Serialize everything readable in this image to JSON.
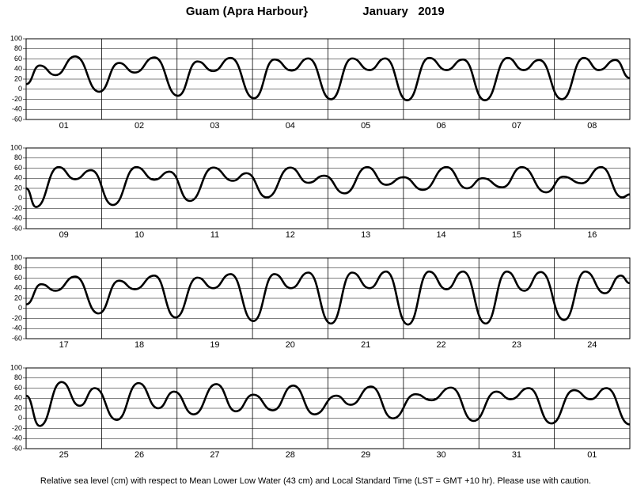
{
  "title": "Guam (Apra Harbour}",
  "date": "January   2019",
  "note": "Relative sea level (cm) with respect to Mean Lower Low Water (43 cm) and Local Standard Time (LST = GMT +10 hr). Please use with caution.",
  "chart_data": [
    {
      "type": "line",
      "categories": [
        "01",
        "02",
        "03",
        "04",
        "05",
        "06",
        "07",
        "08"
      ],
      "xlim": [
        0,
        8
      ],
      "ylim": [
        -60,
        100
      ],
      "yticks": [
        -60,
        -40,
        -20,
        0,
        20,
        40,
        60,
        80,
        100
      ],
      "grid": true,
      "color": "#000000",
      "x": [
        0,
        0.18,
        0.39,
        0.65,
        0.97,
        1.23,
        1.44,
        1.7,
        2.01,
        2.27,
        2.48,
        2.71,
        3.02,
        3.29,
        3.52,
        3.74,
        4.04,
        4.32,
        4.55,
        4.76,
        5.05,
        5.34,
        5.57,
        5.79,
        6.08,
        6.38,
        6.59,
        6.8,
        7.1,
        7.39,
        7.59,
        7.81,
        8
      ],
      "values": [
        10,
        47,
        28,
        65,
        -5,
        52,
        33,
        63,
        -13,
        55,
        36,
        62,
        -18,
        59,
        37,
        61,
        -20,
        61,
        38,
        61,
        -22,
        62,
        38,
        59,
        -22,
        62,
        38,
        58,
        -20,
        62,
        38,
        58,
        22
      ]
    },
    {
      "type": "line",
      "categories": [
        "09",
        "10",
        "11",
        "12",
        "13",
        "14",
        "15",
        "16"
      ],
      "xlim": [
        0,
        8
      ],
      "ylim": [
        -60,
        100
      ],
      "yticks": [
        -60,
        -40,
        -20,
        0,
        20,
        40,
        60,
        80,
        100
      ],
      "grid": true,
      "color": "#000000",
      "x": [
        0,
        0.13,
        0.43,
        0.65,
        0.86,
        1.15,
        1.46,
        1.7,
        1.9,
        2.17,
        2.48,
        2.74,
        2.92,
        3.19,
        3.5,
        3.74,
        3.95,
        4.22,
        4.52,
        4.77,
        5.0,
        5.26,
        5.57,
        5.84,
        6.05,
        6.31,
        6.57,
        6.89,
        7.12,
        7.36,
        7.62,
        7.9,
        8
      ],
      "values": [
        20,
        -17,
        62,
        38,
        56,
        -13,
        62,
        37,
        53,
        -5,
        61,
        35,
        50,
        2,
        61,
        31,
        45,
        10,
        62,
        27,
        42,
        17,
        62,
        20,
        40,
        22,
        62,
        12,
        43,
        30,
        62,
        2,
        8
      ]
    },
    {
      "type": "line",
      "categories": [
        "17",
        "18",
        "19",
        "20",
        "21",
        "22",
        "23",
        "24"
      ],
      "xlim": [
        0,
        8
      ],
      "ylim": [
        -60,
        100
      ],
      "yticks": [
        -60,
        -40,
        -20,
        0,
        20,
        40,
        60,
        80,
        100
      ],
      "grid": true,
      "color": "#000000",
      "x": [
        0,
        0.2,
        0.39,
        0.65,
        0.96,
        1.23,
        1.44,
        1.7,
        1.98,
        2.27,
        2.48,
        2.71,
        3.01,
        3.29,
        3.51,
        3.74,
        4.04,
        4.32,
        4.55,
        4.77,
        5.06,
        5.34,
        5.57,
        5.79,
        6.09,
        6.37,
        6.6,
        6.82,
        7.13,
        7.41,
        7.67,
        7.88,
        8
      ],
      "values": [
        8,
        48,
        35,
        63,
        -10,
        55,
        38,
        65,
        -18,
        61,
        40,
        68,
        -25,
        68,
        40,
        71,
        -30,
        71,
        40,
        73,
        -32,
        73,
        38,
        73,
        -30,
        73,
        35,
        72,
        -23,
        73,
        30,
        65,
        50
      ]
    },
    {
      "type": "line",
      "categories": [
        "25",
        "26",
        "27",
        "28",
        "29",
        "30",
        "31",
        "01"
      ],
      "xlim": [
        0,
        8
      ],
      "ylim": [
        -60,
        100
      ],
      "yticks": [
        -60,
        -40,
        -20,
        0,
        20,
        40,
        60,
        80,
        100
      ],
      "grid": true,
      "color": "#000000",
      "x": [
        0,
        0.18,
        0.47,
        0.71,
        0.91,
        1.2,
        1.49,
        1.75,
        1.96,
        2.22,
        2.52,
        2.78,
        3.01,
        3.27,
        3.54,
        3.82,
        4.11,
        4.3,
        4.57,
        4.86,
        5.16,
        5.37,
        5.63,
        5.93,
        6.23,
        6.42,
        6.66,
        6.96,
        7.26,
        7.48,
        7.69,
        8
      ],
      "values": [
        45,
        -15,
        72,
        25,
        60,
        -3,
        70,
        20,
        53,
        8,
        68,
        14,
        47,
        16,
        65,
        8,
        45,
        27,
        63,
        0,
        48,
        36,
        61,
        -5,
        53,
        38,
        60,
        -10,
        56,
        38,
        60,
        -12
      ]
    }
  ]
}
